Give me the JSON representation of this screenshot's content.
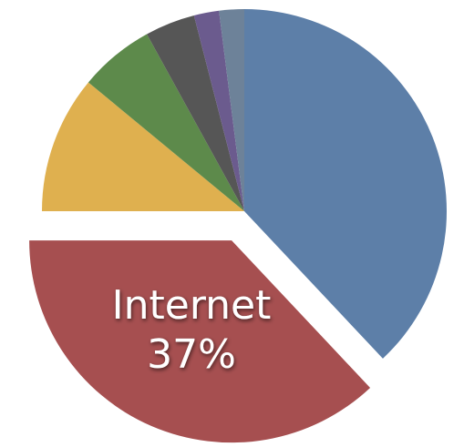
{
  "chart_data": {
    "type": "pie",
    "categories": [
      null,
      "Internet",
      null,
      null,
      null,
      null,
      null
    ],
    "values": [
      38,
      37,
      11,
      6,
      4,
      2,
      2
    ],
    "value_labels": [
      null,
      "37%",
      null,
      null,
      null,
      null,
      null
    ],
    "colors": [
      "#5d7fa8",
      "#a64f50",
      "#dfb04f",
      "#5d8a4b",
      "#565656",
      "#6b5b8e",
      "#6d8299"
    ]
  }
}
